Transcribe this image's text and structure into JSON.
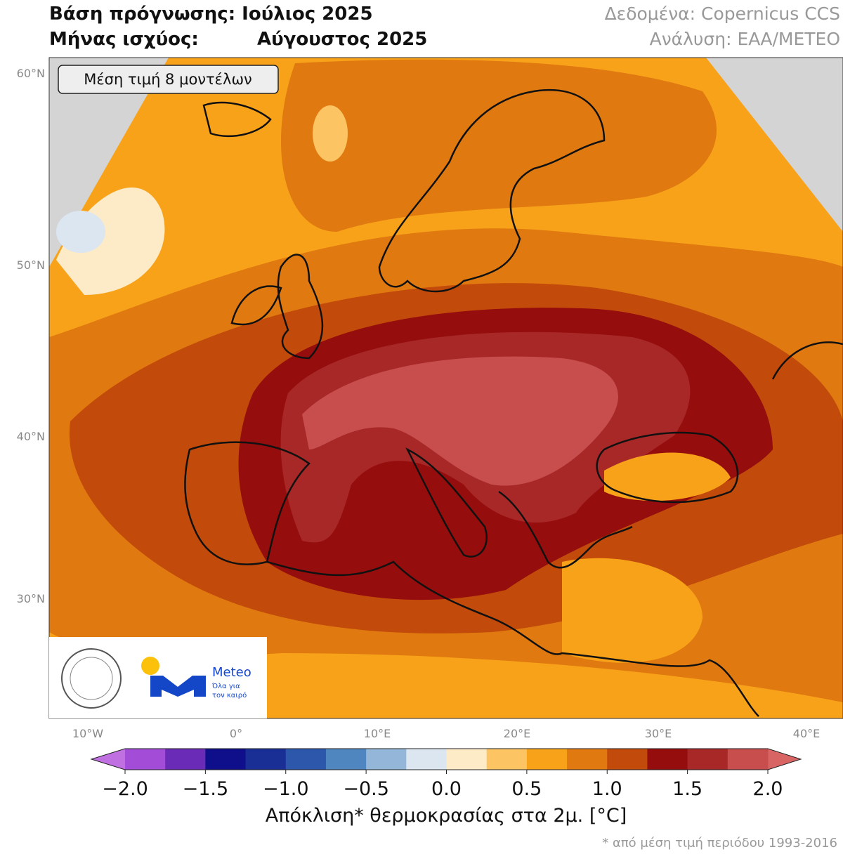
{
  "header": {
    "title_line1": "Βάση πρόγνωσης: Ιούλιος 2025",
    "title_line2_left": "Μήνας ισχύος:",
    "title_line2_right": "Αύγουστος 2025",
    "source": "Δεδομένα: Copernicus CCS",
    "analysis": "Ανάλυση: ΕΑΑ/METEO"
  },
  "map": {
    "badge": "Μέση τιμή 8 μοντέλων",
    "lat_labels": [
      "60°N",
      "50°N",
      "40°N",
      "30°N"
    ],
    "lon_labels": [
      "10°W",
      "0°",
      "10°E",
      "20°E",
      "30°E",
      "40°E"
    ],
    "logo": {
      "name": "Meteo",
      "tagline_line1": "Όλα για",
      "tagline_line2": "τον καιρό"
    }
  },
  "colorbar": {
    "vlim": [
      -2,
      2
    ],
    "ticks": [
      {
        "value": -2,
        "label": "−2.0"
      },
      {
        "value": -1.5,
        "label": "−1.5"
      },
      {
        "value": -1,
        "label": "−1.0"
      },
      {
        "value": -0.5,
        "label": "−0.5"
      },
      {
        "value": 0,
        "label": "0.0"
      },
      {
        "value": 0.5,
        "label": "0.5"
      },
      {
        "value": 1,
        "label": "1.0"
      },
      {
        "value": 1.5,
        "label": "1.5"
      },
      {
        "value": 2,
        "label": "2.0"
      }
    ],
    "colors": [
      "#a24cd8",
      "#6a2cb6",
      "#0f0f8c",
      "#1a2f96",
      "#2c57aa",
      "#4f86bf",
      "#94b6d8",
      "#dce6f1",
      "#fdebc8",
      "#fcc463",
      "#f8a21a",
      "#e07a10",
      "#c24a0a",
      "#950d0d",
      "#a82828",
      "#c84e4e"
    ],
    "under_color": "#c070e0",
    "over_color": "#d86464",
    "label": "Απόκλιση* θερμοκρασίας στα 2μ. [°C]",
    "footnote": "* από μέση τιμή περιόδου 1993-2016"
  }
}
